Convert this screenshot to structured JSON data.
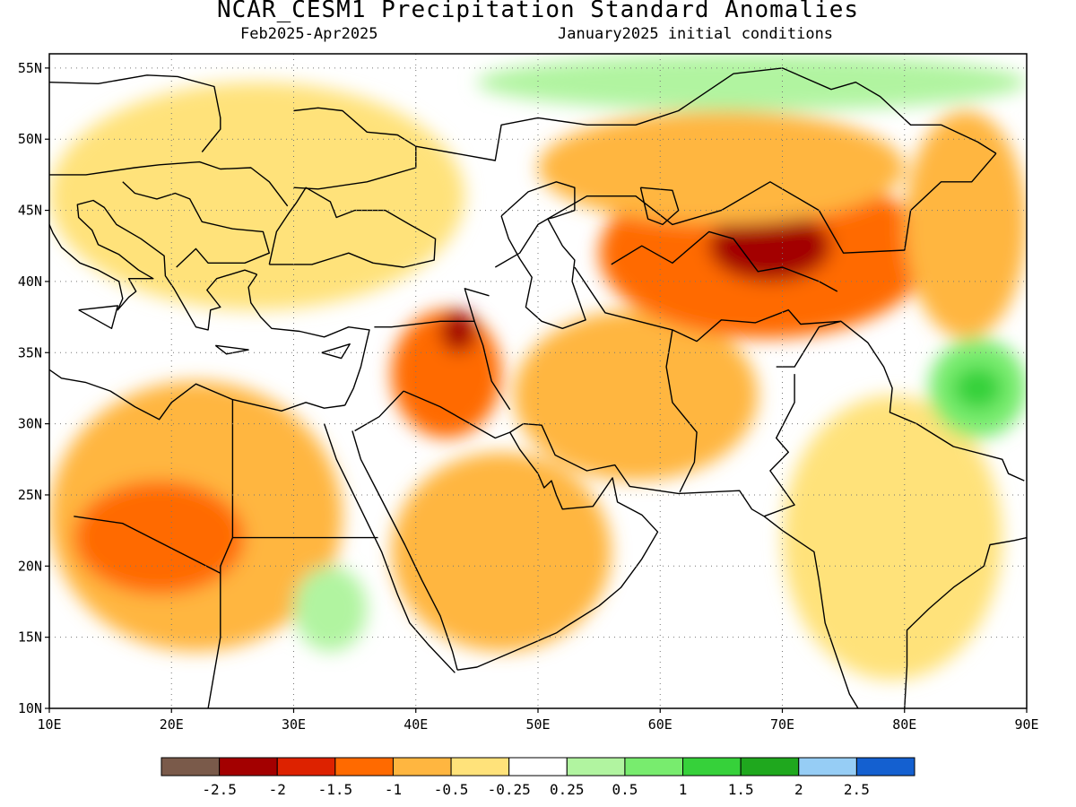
{
  "header": {
    "title": "NCAR_CESM1 Precipitation Standard Anomalies",
    "period": "Feb2025-Apr2025",
    "init": "January2025 initial conditions"
  },
  "map": {
    "lon_range": [
      10,
      90
    ],
    "lat_range": [
      10,
      56
    ],
    "lon_ticks": [
      "10E",
      "20E",
      "30E",
      "40E",
      "50E",
      "60E",
      "70E",
      "80E",
      "90E"
    ],
    "lat_ticks": [
      "10N",
      "15N",
      "20N",
      "25N",
      "30N",
      "35N",
      "40N",
      "45N",
      "50N",
      "55N"
    ],
    "lon_values": [
      10,
      20,
      30,
      40,
      50,
      60,
      70,
      80,
      90
    ],
    "lat_values": [
      10,
      15,
      20,
      25,
      30,
      35,
      40,
      45,
      50,
      55
    ],
    "grid": "dotted",
    "anomaly_regions": [
      {
        "name": "north-africa-dry",
        "lon": [
          10,
          34
        ],
        "lat": [
          14,
          33
        ],
        "level": -1
      },
      {
        "name": "libya-egypt-core",
        "lon": [
          12,
          26
        ],
        "lat": [
          18,
          26
        ],
        "level": -1.5
      },
      {
        "name": "arabia-dry",
        "lon": [
          38,
          56
        ],
        "lat": [
          14,
          28
        ],
        "level": -1
      },
      {
        "name": "iran-dry",
        "lon": [
          48,
          68
        ],
        "lat": [
          26,
          38
        ],
        "level": -1
      },
      {
        "name": "levant-iraq",
        "lon": [
          38,
          47
        ],
        "lat": [
          29,
          38
        ],
        "level": -1.5
      },
      {
        "name": "syria-core",
        "lon": [
          42,
          45
        ],
        "lat": [
          35,
          38
        ],
        "level": -2
      },
      {
        "name": "central-asia",
        "lon": [
          55,
          82
        ],
        "lat": [
          36,
          48
        ],
        "level": -1.5
      },
      {
        "name": "central-asia-core",
        "lon": [
          64,
          74
        ],
        "lat": [
          40,
          45
        ],
        "level": -2
      },
      {
        "name": "kazakhstan-north",
        "lon": [
          50,
          80
        ],
        "lat": [
          44,
          52
        ],
        "level": -1
      },
      {
        "name": "mongolia-west",
        "lon": [
          80,
          90
        ],
        "lat": [
          36,
          52
        ],
        "level": -1
      },
      {
        "name": "europe-dry",
        "lon": [
          10,
          44
        ],
        "lat": [
          38,
          54
        ],
        "level": -0.5
      },
      {
        "name": "india-dry",
        "lon": [
          70,
          88
        ],
        "lat": [
          12,
          32
        ],
        "level": -0.5
      },
      {
        "name": "tibet-wet",
        "lon": [
          82,
          90
        ],
        "lat": [
          29,
          36
        ],
        "level": 1
      },
      {
        "name": "tibet-wet-core",
        "lon": [
          84,
          88
        ],
        "lat": [
          31,
          34
        ],
        "level": 1.5
      },
      {
        "name": "sudan-wet",
        "lon": [
          30,
          36
        ],
        "lat": [
          14,
          20
        ],
        "level": 0.5
      },
      {
        "name": "north-wet",
        "lon": [
          45,
          90
        ],
        "lat": [
          52,
          56
        ],
        "level": 0.5
      }
    ]
  },
  "colorbar": {
    "colors": [
      "#7a5a4a",
      "#a30000",
      "#dd2200",
      "#ff6a00",
      "#ffb640",
      "#ffe27a",
      "#ffffff",
      "#b1f4a0",
      "#78ec6e",
      "#36d13a",
      "#1fa81e",
      "#96cdf5",
      "#1460d0"
    ],
    "labels": [
      "-2.5",
      "-2",
      "-1.5",
      "-1",
      "-0.5",
      "-0.25",
      "0.25",
      "0.5",
      "1",
      "1.5",
      "2",
      "2.5"
    ]
  }
}
